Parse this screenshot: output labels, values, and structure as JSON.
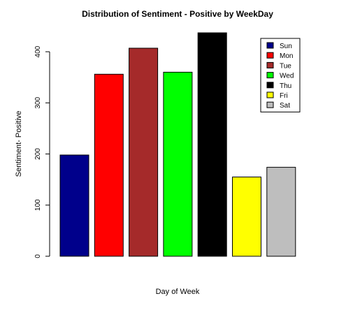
{
  "chart_data": {
    "type": "bar",
    "title": "Distribution of Sentiment - Positive by WeekDay",
    "xlabel": "Day of Week",
    "ylabel": "Sentiment- Positive",
    "categories": [
      "Sun",
      "Mon",
      "Tue",
      "Wed",
      "Thu",
      "Fri",
      "Sat"
    ],
    "values": [
      198,
      356,
      407,
      360,
      437,
      155,
      174
    ],
    "colors": [
      "#00008B",
      "#FF0000",
      "#A52A2A",
      "#00FF00",
      "#000000",
      "#FFFF00",
      "#BEBEBE"
    ],
    "ylim": [
      0,
      437
    ],
    "yticks": [
      "0",
      "100",
      "200",
      "300",
      "400"
    ],
    "grid": false,
    "legend": {
      "position": "top-right",
      "entries": [
        "Sun",
        "Mon",
        "Tue",
        "Wed",
        "Thu",
        "Fri",
        "Sat"
      ]
    }
  }
}
